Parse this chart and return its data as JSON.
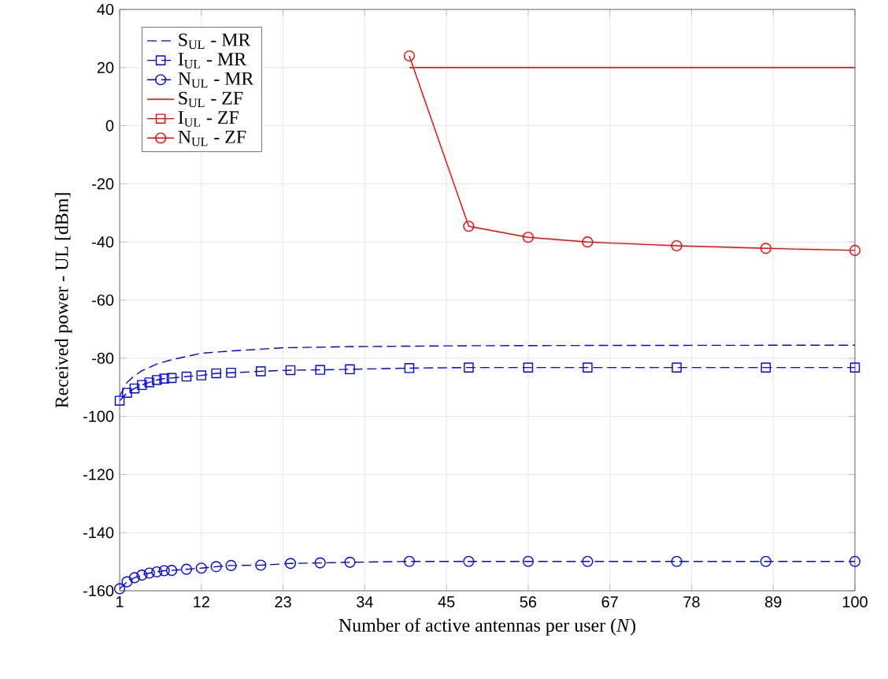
{
  "chart_data": {
    "type": "line",
    "xlabel": "Number of active antennas per user (*N*)",
    "ylabel": "Received power - UL [dBm]",
    "xlim": [
      1,
      100
    ],
    "ylim": [
      -160,
      40
    ],
    "xticks": [
      1,
      12,
      23,
      34,
      45,
      56,
      67,
      78,
      89,
      100
    ],
    "yticks": [
      -160,
      -140,
      -120,
      -100,
      -80,
      -60,
      -40,
      -20,
      0,
      20,
      40
    ],
    "grid": true,
    "legend": "top left",
    "series": [
      {
        "name": "S$_{UL}$ - MR",
        "color": "#0000ff",
        "line_style": "dashed",
        "marker": "none",
        "x": [
          1,
          2,
          3,
          4,
          6,
          8,
          12,
          16,
          23,
          32,
          48,
          64,
          100
        ],
        "values": [
          -93,
          -88.3,
          -86,
          -84.3,
          -82,
          -80.5,
          -78.3,
          -77.5,
          -76.4,
          -76,
          -75.7,
          -75.6,
          -75.5
        ]
      },
      {
        "name": "I$_{UL}$ - MR",
        "color": "#0000ff",
        "line_style": "dashed",
        "marker": "square",
        "x": [
          1,
          2,
          3,
          4,
          5,
          6,
          7,
          8,
          10,
          12,
          14,
          16,
          20,
          24,
          28,
          32,
          40,
          48,
          56,
          64,
          76,
          88,
          100
        ],
        "values": [
          -94.6,
          -91.9,
          -90.4,
          -89.2,
          -88.3,
          -87.5,
          -87,
          -86.8,
          -86.3,
          -85.9,
          -85.2,
          -85,
          -84.5,
          -84.1,
          -84,
          -83.8,
          -83.4,
          -83.2,
          -83.2,
          -83.2,
          -83.2,
          -83.2,
          -83.2
        ]
      },
      {
        "name": "N$_{UL}$ - MR",
        "color": "#0000ff",
        "line_style": "dashed",
        "marker": "circle",
        "x": [
          1,
          2,
          3,
          4,
          5,
          6,
          7,
          8,
          10,
          12,
          14,
          16,
          20,
          24,
          28,
          32,
          40,
          48,
          56,
          64,
          76,
          88,
          100
        ],
        "values": [
          -159.3,
          -156.9,
          -155.5,
          -154.6,
          -153.9,
          -153.5,
          -153.1,
          -153,
          -152.6,
          -152.2,
          -151.7,
          -151.3,
          -151.2,
          -150.6,
          -150.4,
          -150.2,
          -149.9,
          -149.9,
          -149.9,
          -149.9,
          -149.9,
          -149.9,
          -149.9
        ]
      },
      {
        "name": "S$_{UL}$ - ZF",
        "color": "#ff0000",
        "line_style": "solid",
        "marker": "none",
        "x": [
          40,
          48,
          56,
          64,
          76,
          88,
          100
        ],
        "values": [
          20,
          20,
          20,
          20,
          20,
          20,
          20
        ]
      },
      {
        "name": "I$_{UL}$ - ZF",
        "color": "#ff0000",
        "line_style": "solid",
        "marker": "square"
      },
      {
        "name": "N$_{UL}$ - ZF",
        "color": "#ff0000",
        "line_style": "solid",
        "marker": "circle",
        "x": [
          40,
          48,
          56,
          64,
          76,
          88,
          100
        ],
        "values": [
          24,
          -34.6,
          -38.4,
          -40,
          -41.3,
          -42.2,
          -42.9
        ]
      }
    ]
  }
}
